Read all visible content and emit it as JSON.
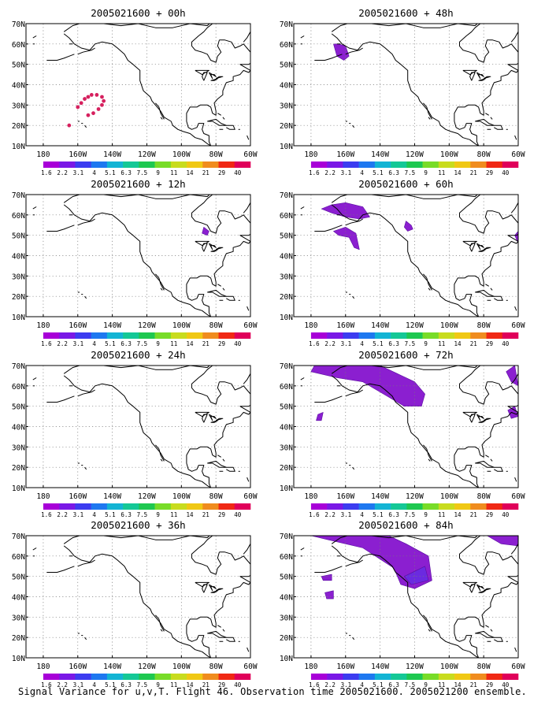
{
  "colorbar": {
    "labels": [
      "1.6",
      "2.2",
      "3.1",
      "4",
      "5.1",
      "6.3",
      "7.5",
      "9",
      "11",
      "14",
      "21",
      "29",
      "40"
    ],
    "colors": [
      "#a800d8",
      "#7a18e6",
      "#3c3cf0",
      "#1e78f0",
      "#13b4d4",
      "#14c896",
      "#1ec850",
      "#78dc28",
      "#c8dc1e",
      "#f0c814",
      "#f08c1e",
      "#f02814",
      "#e0005a"
    ]
  },
  "axes": {
    "x_ticks": [
      "180",
      "160W",
      "140W",
      "120W",
      "100W",
      "80W",
      "60W"
    ],
    "y_ticks": [
      "10N",
      "20N",
      "30N",
      "40N",
      "50N",
      "60N",
      "70N"
    ]
  },
  "colors": {
    "grid": "#7a7a7a",
    "coast": "#000000",
    "signal_low": "#8b1fd0",
    "signal_high": "#6b2ae0",
    "dots": "#d6205e"
  },
  "panels": [
    {
      "title": "2005021600 + 00h",
      "signal_regions": [],
      "dots": [
        [
          -160,
          29
        ],
        [
          -158,
          31
        ],
        [
          -156,
          33
        ],
        [
          -154,
          34
        ],
        [
          -152,
          35
        ],
        [
          -149,
          35
        ],
        [
          -146,
          34
        ],
        [
          -145,
          32
        ],
        [
          -146,
          30
        ],
        [
          -148,
          28
        ],
        [
          -151,
          26
        ],
        [
          -154,
          25
        ],
        [
          -165,
          20
        ]
      ]
    },
    {
      "title": "2005021600 + 48h",
      "signal_regions": [
        {
          "shade": "low",
          "pts": [
            [
              -167,
              60
            ],
            [
              -165,
              54
            ],
            [
              -161,
              52
            ],
            [
              -158,
              54
            ],
            [
              -160,
              59
            ],
            [
              -164,
              60
            ]
          ]
        }
      ],
      "dots": []
    },
    {
      "title": "2005021600 + 12h",
      "signal_regions": [
        {
          "shade": "low",
          "pts": [
            [
              -87,
              54
            ],
            [
              -84,
              52
            ],
            [
              -85,
              50
            ],
            [
              -88,
              51
            ]
          ]
        }
      ],
      "dots": []
    },
    {
      "title": "2005021600 + 60h",
      "signal_regions": [
        {
          "shade": "low",
          "pts": [
            [
              -174,
              63
            ],
            [
              -168,
              65
            ],
            [
              -160,
              66
            ],
            [
              -150,
              64
            ],
            [
              -146,
              59
            ],
            [
              -152,
              58
            ],
            [
              -160,
              59
            ],
            [
              -168,
              61
            ]
          ]
        },
        {
          "shade": "low",
          "pts": [
            [
              -167,
              52
            ],
            [
              -160,
              54
            ],
            [
              -154,
              51
            ],
            [
              -152,
              43
            ],
            [
              -155,
              44
            ],
            [
              -158,
              49
            ],
            [
              -164,
              50
            ]
          ]
        },
        {
          "shade": "low",
          "pts": [
            [
              -125,
              57
            ],
            [
              -122,
              55
            ],
            [
              -121,
              53
            ],
            [
              -124,
              52
            ],
            [
              -126,
              54
            ]
          ]
        },
        {
          "shade": "low",
          "pts": [
            [
              -62,
              50
            ],
            [
              -60,
              52
            ],
            [
              -60,
              46
            ]
          ]
        }
      ],
      "dots": []
    },
    {
      "title": "2005021600 + 24h",
      "signal_regions": [],
      "dots": []
    },
    {
      "title": "2005021600 + 72h",
      "signal_regions": [
        {
          "shade": "low",
          "pts": [
            [
              -178,
              70
            ],
            [
              -140,
              70
            ],
            [
              -130,
              66
            ],
            [
              -120,
              62
            ],
            [
              -114,
              56
            ],
            [
              -116,
              50
            ],
            [
              -126,
              50
            ],
            [
              -136,
              55
            ],
            [
              -150,
              62
            ],
            [
              -165,
              64
            ],
            [
              -180,
              67
            ]
          ]
        },
        {
          "shade": "low",
          "pts": [
            [
              -67,
              67
            ],
            [
              -62,
              70
            ],
            [
              -60,
              60
            ],
            [
              -64,
              62
            ]
          ]
        },
        {
          "shade": "low",
          "pts": [
            [
              -66,
              48
            ],
            [
              -62,
              50
            ],
            [
              -60,
              45
            ],
            [
              -64,
              44
            ]
          ]
        },
        {
          "shade": "low",
          "pts": [
            [
              -176,
              46
            ],
            [
              -173,
              47
            ],
            [
              -174,
              43
            ],
            [
              -177,
              43
            ]
          ]
        }
      ],
      "dots": []
    },
    {
      "title": "2005021600 + 36h",
      "signal_regions": [],
      "dots": []
    },
    {
      "title": "2005021600 + 84h",
      "signal_regions": [
        {
          "shade": "low",
          "pts": [
            [
              -180,
              70
            ],
            [
              -135,
              70
            ],
            [
              -125,
              66
            ],
            [
              -112,
              60
            ],
            [
              -110,
              48
            ],
            [
              -120,
              44
            ],
            [
              -128,
              46
            ],
            [
              -132,
              54
            ],
            [
              -150,
              64
            ],
            [
              -170,
              68
            ]
          ]
        },
        {
          "shade": "high",
          "pts": [
            [
              -126,
              50
            ],
            [
              -114,
              55
            ],
            [
              -112,
              48
            ],
            [
              -122,
              46
            ]
          ]
        },
        {
          "shade": "low",
          "pts": [
            [
              -78,
              70
            ],
            [
              -60,
              70
            ],
            [
              -60,
              65
            ],
            [
              -70,
              66
            ]
          ]
        },
        {
          "shade": "low",
          "pts": [
            [
              -174,
              50
            ],
            [
              -168,
              51
            ],
            [
              -168,
              48
            ],
            [
              -173,
              48
            ]
          ]
        },
        {
          "shade": "low",
          "pts": [
            [
              -172,
              42
            ],
            [
              -167,
              43
            ],
            [
              -167,
              39
            ],
            [
              -171,
              39
            ]
          ]
        }
      ],
      "dots": []
    }
  ],
  "caption": "Signal Variance for u,v,T. Flight 46. Observation time 2005021600. 2005021200 ensemble."
}
